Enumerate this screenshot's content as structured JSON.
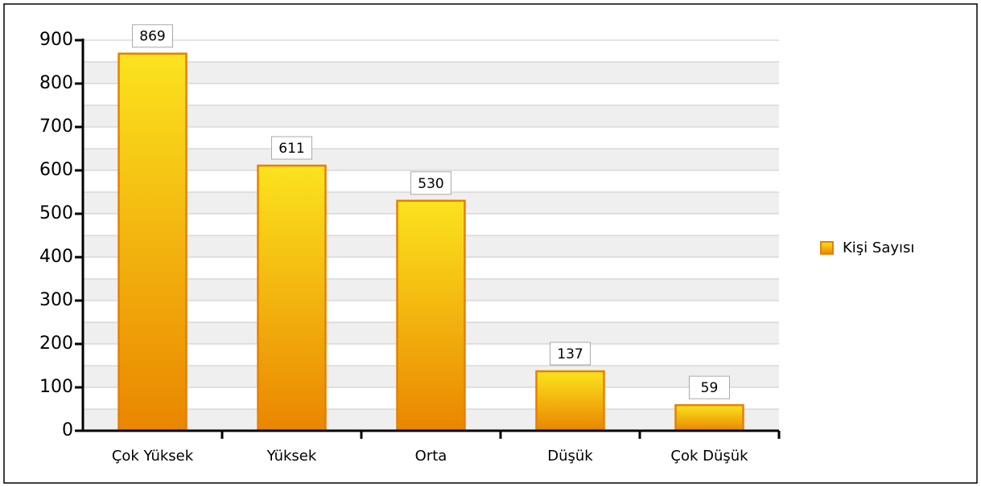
{
  "chart_data": {
    "type": "bar",
    "categories": [
      "Çok Yüksek",
      "Yüksek",
      "Orta",
      "Düşük",
      "Çok Düşük"
    ],
    "series": [
      {
        "name": "Kişi Sayısı",
        "color": "#f5b400",
        "values": [
          869,
          611,
          530,
          137,
          59
        ]
      }
    ],
    "ylim": [
      0,
      900
    ],
    "yticks": [
      0,
      100,
      200,
      300,
      400,
      500,
      600,
      700,
      800,
      900
    ],
    "grid": true,
    "legend": "right"
  }
}
